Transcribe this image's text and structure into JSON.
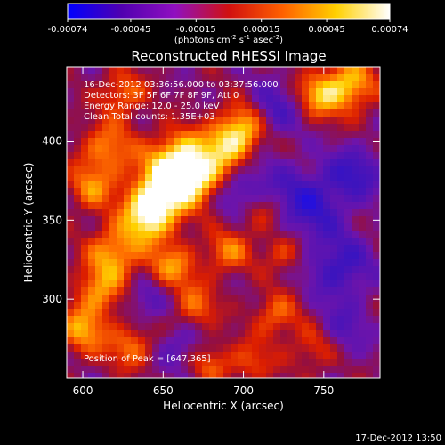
{
  "chart_data": {
    "type": "heatmap",
    "title": "Reconstructed RHESSI Image",
    "xlabel": "Heliocentric X (arcsec)",
    "ylabel": "Heliocentric Y (arcsec)",
    "xlim": [
      590,
      785
    ],
    "ylim": [
      250,
      447
    ],
    "xticks": [
      600,
      650,
      700,
      750
    ],
    "yticks": [
      300,
      350,
      400
    ],
    "colorbar": {
      "min": -0.00074,
      "max": 0.00074,
      "ticks": [
        "-0.00074",
        "-0.00045",
        "-0.00015",
        "0.00015",
        "0.00045",
        "0.00074"
      ],
      "label_parts": [
        "(photons cm",
        "-2",
        " s",
        "-1",
        " asec",
        "-2",
        ")"
      ],
      "colors": [
        "#0000ff",
        "#5000b0",
        "#9010c0",
        "#d01010",
        "#ff6000",
        "#ffd000",
        "#ffffff"
      ]
    },
    "annotations": [
      "16-Dec-2012 03:36:56.000 to 03:37:56.000",
      "Detectors: 3F 5F 6F 7F 8F 9F, Att 0",
      "Energy Range: 12.0 - 25.0 keV",
      "Clean     Total counts: 1.35E+03"
    ],
    "peak_label": "Position of Peak = [647,365]",
    "peak": [
      647,
      365
    ],
    "footer_timestamp": "17-Dec-2012 13:50",
    "hotspots": [
      {
        "x": 650,
        "y": 368,
        "amp": 1.0,
        "r": 14
      },
      {
        "x": 660,
        "y": 390,
        "amp": 0.85,
        "r": 12
      },
      {
        "x": 640,
        "y": 352,
        "amp": 0.75,
        "r": 11
      },
      {
        "x": 675,
        "y": 375,
        "amp": 0.7,
        "r": 10
      },
      {
        "x": 690,
        "y": 395,
        "amp": 0.8,
        "r": 12
      },
      {
        "x": 700,
        "y": 410,
        "amp": 0.65,
        "r": 10
      },
      {
        "x": 615,
        "y": 395,
        "amp": 0.6,
        "r": 12
      },
      {
        "x": 605,
        "y": 370,
        "amp": 0.55,
        "r": 10
      },
      {
        "x": 620,
        "y": 330,
        "amp": 0.7,
        "r": 12
      },
      {
        "x": 610,
        "y": 305,
        "amp": 0.6,
        "r": 11
      },
      {
        "x": 600,
        "y": 280,
        "amp": 0.65,
        "r": 11
      },
      {
        "x": 630,
        "y": 270,
        "amp": 0.55,
        "r": 10
      },
      {
        "x": 655,
        "y": 320,
        "amp": 0.6,
        "r": 11
      },
      {
        "x": 670,
        "y": 295,
        "amp": 0.5,
        "r": 10
      },
      {
        "x": 690,
        "y": 330,
        "amp": 0.55,
        "r": 10
      },
      {
        "x": 710,
        "y": 355,
        "amp": 0.5,
        "r": 10
      },
      {
        "x": 720,
        "y": 290,
        "amp": 0.5,
        "r": 10
      },
      {
        "x": 745,
        "y": 270,
        "amp": 0.45,
        "r": 11
      },
      {
        "x": 765,
        "y": 435,
        "amp": 0.8,
        "r": 12
      },
      {
        "x": 745,
        "y": 428,
        "amp": 0.6,
        "r": 10
      },
      {
        "x": 625,
        "y": 430,
        "amp": 0.55,
        "r": 10
      },
      {
        "x": 725,
        "y": 330,
        "amp": 0.45,
        "r": 9
      },
      {
        "x": 705,
        "y": 260,
        "amp": 0.4,
        "r": 10
      },
      {
        "x": 680,
        "y": 260,
        "amp": 0.45,
        "r": 9
      },
      {
        "x": 640,
        "y": 300,
        "amp": -0.4,
        "r": 10
      },
      {
        "x": 700,
        "y": 370,
        "amp": -0.5,
        "r": 14
      },
      {
        "x": 740,
        "y": 360,
        "amp": -0.6,
        "r": 16
      },
      {
        "x": 760,
        "y": 320,
        "amp": -0.55,
        "r": 14
      },
      {
        "x": 720,
        "y": 420,
        "amp": -0.45,
        "r": 12
      },
      {
        "x": 660,
        "y": 270,
        "amp": -0.35,
        "r": 10
      },
      {
        "x": 770,
        "y": 380,
        "amp": -0.5,
        "r": 12
      },
      {
        "x": 760,
        "y": 280,
        "amp": -0.4,
        "r": 12
      }
    ]
  }
}
